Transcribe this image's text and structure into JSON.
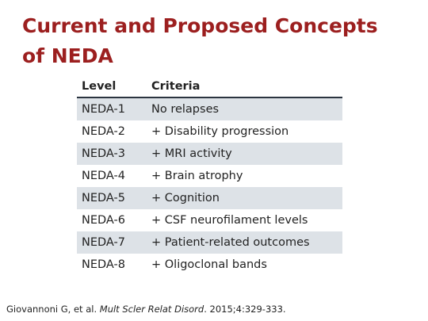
{
  "header": {
    "title_lines": [
      "Current and Proposed Concepts",
      "of NEDA"
    ]
  },
  "table": {
    "columns": [
      "Level",
      "Criteria"
    ],
    "rows": [
      [
        "NEDA-1",
        "No relapses"
      ],
      [
        "NEDA-2",
        "+ Disability progression"
      ],
      [
        "NEDA-3",
        "+ MRI activity"
      ],
      [
        "NEDA-4",
        "+ Brain atrophy"
      ],
      [
        "NEDA-5",
        "+ Cognition"
      ],
      [
        "NEDA-6",
        "+ CSF neurofilament levels"
      ],
      [
        "NEDA-7",
        "+ Patient-related outcomes"
      ],
      [
        "NEDA-8",
        "+ Oligoclonal bands"
      ]
    ]
  },
  "citation": {
    "authors": "Giovannoni G, et al. ",
    "journal": "Mult Scler Relat Disord",
    "details": ". 2015;4:329-333."
  }
}
